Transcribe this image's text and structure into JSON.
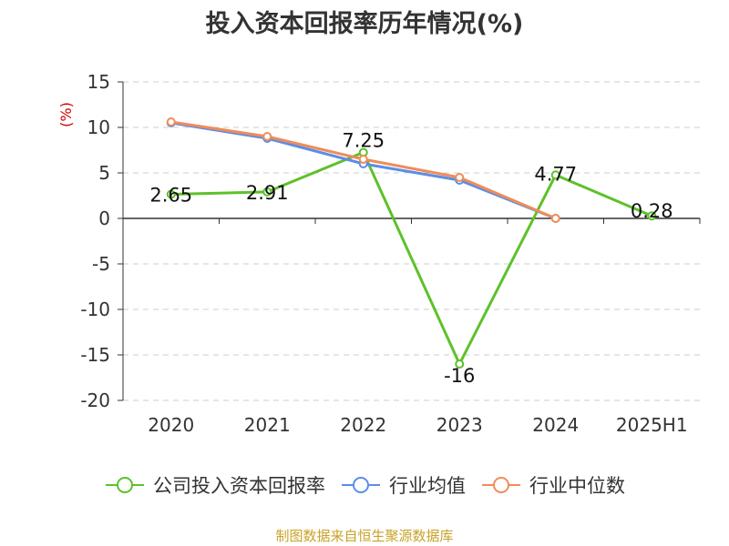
{
  "title": "投入资本回报率历年情况(%)",
  "source": "制图数据来自恒生聚源数据库",
  "colors": {
    "company": "#5dc12a",
    "industry_avg": "#5b8ee6",
    "industry_median": "#f08c5a",
    "axis_unit": "#cc0000"
  },
  "chart_data": {
    "type": "line",
    "title": "投入资本回报率历年情况(%)",
    "ylabel": "(%)",
    "xlabel": "",
    "categories": [
      "2020",
      "2021",
      "2022",
      "2023",
      "2024",
      "2025H1"
    ],
    "ylim": [
      -20,
      15
    ],
    "yticks": [
      15,
      10,
      5,
      0,
      -5,
      -10,
      -15,
      -20
    ],
    "grid": true,
    "legend_position": "bottom",
    "series": [
      {
        "name": "公司投入资本回报率",
        "color": "#5dc12a",
        "values": [
          2.65,
          2.91,
          7.25,
          -16,
          4.77,
          0.28
        ],
        "labels": [
          "2.65",
          "2.91",
          "7.25",
          "-16",
          "4.77",
          "0.28"
        ]
      },
      {
        "name": "行业均值",
        "color": "#5b8ee6",
        "values": [
          10.5,
          8.8,
          6.0,
          4.2,
          0.0,
          null
        ]
      },
      {
        "name": "行业中位数",
        "color": "#f08c5a",
        "values": [
          10.6,
          9.0,
          6.5,
          4.5,
          0.0,
          null
        ]
      }
    ]
  }
}
